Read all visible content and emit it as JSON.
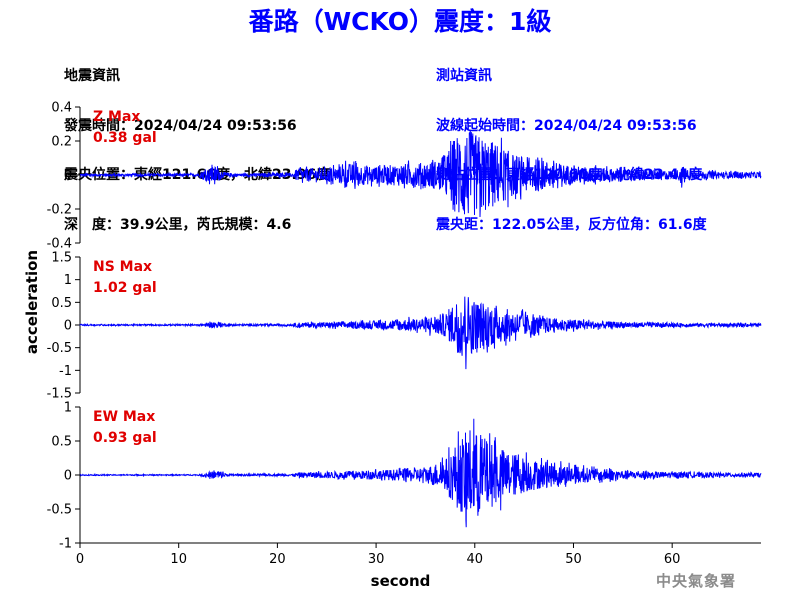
{
  "title": "番路（WCKO）震度：1級",
  "event_info": {
    "heading": "地震資訊",
    "origin_time": "發震時間：2024/04/24 09:53:56",
    "epicenter": "震央位置：東經121.66度，北緯23.96度",
    "depth_magnitude": "深　度：39.9公里，芮氏規模：4.6"
  },
  "station_info": {
    "heading": "測站資訊",
    "wave_start": "波線起始時間：2024/04/24 09:53:56",
    "location": "測站位置：東經120.60度，北緯23.44度",
    "distance": "震央距：122.05公里，反方位角：61.6度"
  },
  "agency": "中央氣象署",
  "colors": {
    "trace": "#0000ff",
    "max_label": "#e00000",
    "title": "#0000ff",
    "axis": "#000000"
  },
  "chart_data": {
    "type": "line",
    "xlabel": "second",
    "ylabel": "acceleration",
    "xlim": [
      0,
      69
    ],
    "xticks": [
      "0",
      "10",
      "20",
      "30",
      "40",
      "50",
      "60"
    ],
    "grid": false,
    "panels": [
      {
        "name": "Z",
        "max_label": "Z Max",
        "max_value": "0.38 gal",
        "ylim": [
          -0.4,
          0.4
        ],
        "yticks": [
          "0.4",
          "0.2",
          "0",
          "-0.2",
          "-0.4"
        ],
        "envelope": [
          [
            0,
            0.01
          ],
          [
            12.0,
            0.01
          ],
          [
            12.5,
            0.04
          ],
          [
            13.7,
            0.07
          ],
          [
            14.5,
            0.02
          ],
          [
            16,
            0.012
          ],
          [
            21.5,
            0.015
          ],
          [
            22.0,
            0.05
          ],
          [
            26,
            0.06
          ],
          [
            27,
            0.09
          ],
          [
            30,
            0.07
          ],
          [
            33,
            0.09
          ],
          [
            35,
            0.1
          ],
          [
            36.5,
            0.12
          ],
          [
            37.5,
            0.22
          ],
          [
            38.5,
            0.37
          ],
          [
            40,
            0.33
          ],
          [
            42,
            0.26
          ],
          [
            44,
            0.16
          ],
          [
            46,
            0.13
          ],
          [
            48,
            0.1
          ],
          [
            50,
            0.07
          ],
          [
            54,
            0.05
          ],
          [
            58,
            0.04
          ],
          [
            60.5,
            0.035
          ],
          [
            61,
            0.08
          ],
          [
            61.5,
            0.035
          ],
          [
            66,
            0.025
          ],
          [
            69,
            0.025
          ]
        ]
      },
      {
        "name": "NS",
        "max_label": "NS Max",
        "max_value": "1.02 gal",
        "ylim": [
          -1.5,
          1.5
        ],
        "yticks": [
          "1.5",
          "1",
          "0.5",
          "0",
          "-0.5",
          "-1",
          "-1.5"
        ],
        "envelope": [
          [
            0,
            0.02
          ],
          [
            12.0,
            0.02
          ],
          [
            13.0,
            0.07
          ],
          [
            14.0,
            0.09
          ],
          [
            15,
            0.03
          ],
          [
            21.5,
            0.03
          ],
          [
            22,
            0.07
          ],
          [
            28,
            0.1
          ],
          [
            32,
            0.15
          ],
          [
            35,
            0.22
          ],
          [
            37,
            0.35
          ],
          [
            38,
            0.7
          ],
          [
            39,
            1.0
          ],
          [
            40,
            0.75
          ],
          [
            42,
            0.6
          ],
          [
            44,
            0.4
          ],
          [
            46,
            0.28
          ],
          [
            48,
            0.2
          ],
          [
            52,
            0.12
          ],
          [
            56,
            0.08
          ],
          [
            60,
            0.06
          ],
          [
            66,
            0.05
          ],
          [
            69,
            0.05
          ]
        ]
      },
      {
        "name": "EW",
        "max_label": "EW Max",
        "max_value": "0.93 gal",
        "ylim": [
          -1,
          1
        ],
        "yticks": [
          "1",
          "0.5",
          "0",
          "-0.5",
          "-1"
        ],
        "envelope": [
          [
            0,
            0.01
          ],
          [
            12.0,
            0.01
          ],
          [
            13.0,
            0.05
          ],
          [
            14.0,
            0.1
          ],
          [
            15,
            0.02
          ],
          [
            21.5,
            0.02
          ],
          [
            22,
            0.05
          ],
          [
            28,
            0.08
          ],
          [
            32,
            0.11
          ],
          [
            35,
            0.15
          ],
          [
            37,
            0.3
          ],
          [
            38,
            0.6
          ],
          [
            39.5,
            0.93
          ],
          [
            41,
            0.7
          ],
          [
            43,
            0.5
          ],
          [
            45,
            0.35
          ],
          [
            47,
            0.25
          ],
          [
            49,
            0.2
          ],
          [
            52,
            0.13
          ],
          [
            56,
            0.08
          ],
          [
            60,
            0.06
          ],
          [
            66,
            0.04
          ],
          [
            69,
            0.04
          ]
        ]
      }
    ]
  }
}
